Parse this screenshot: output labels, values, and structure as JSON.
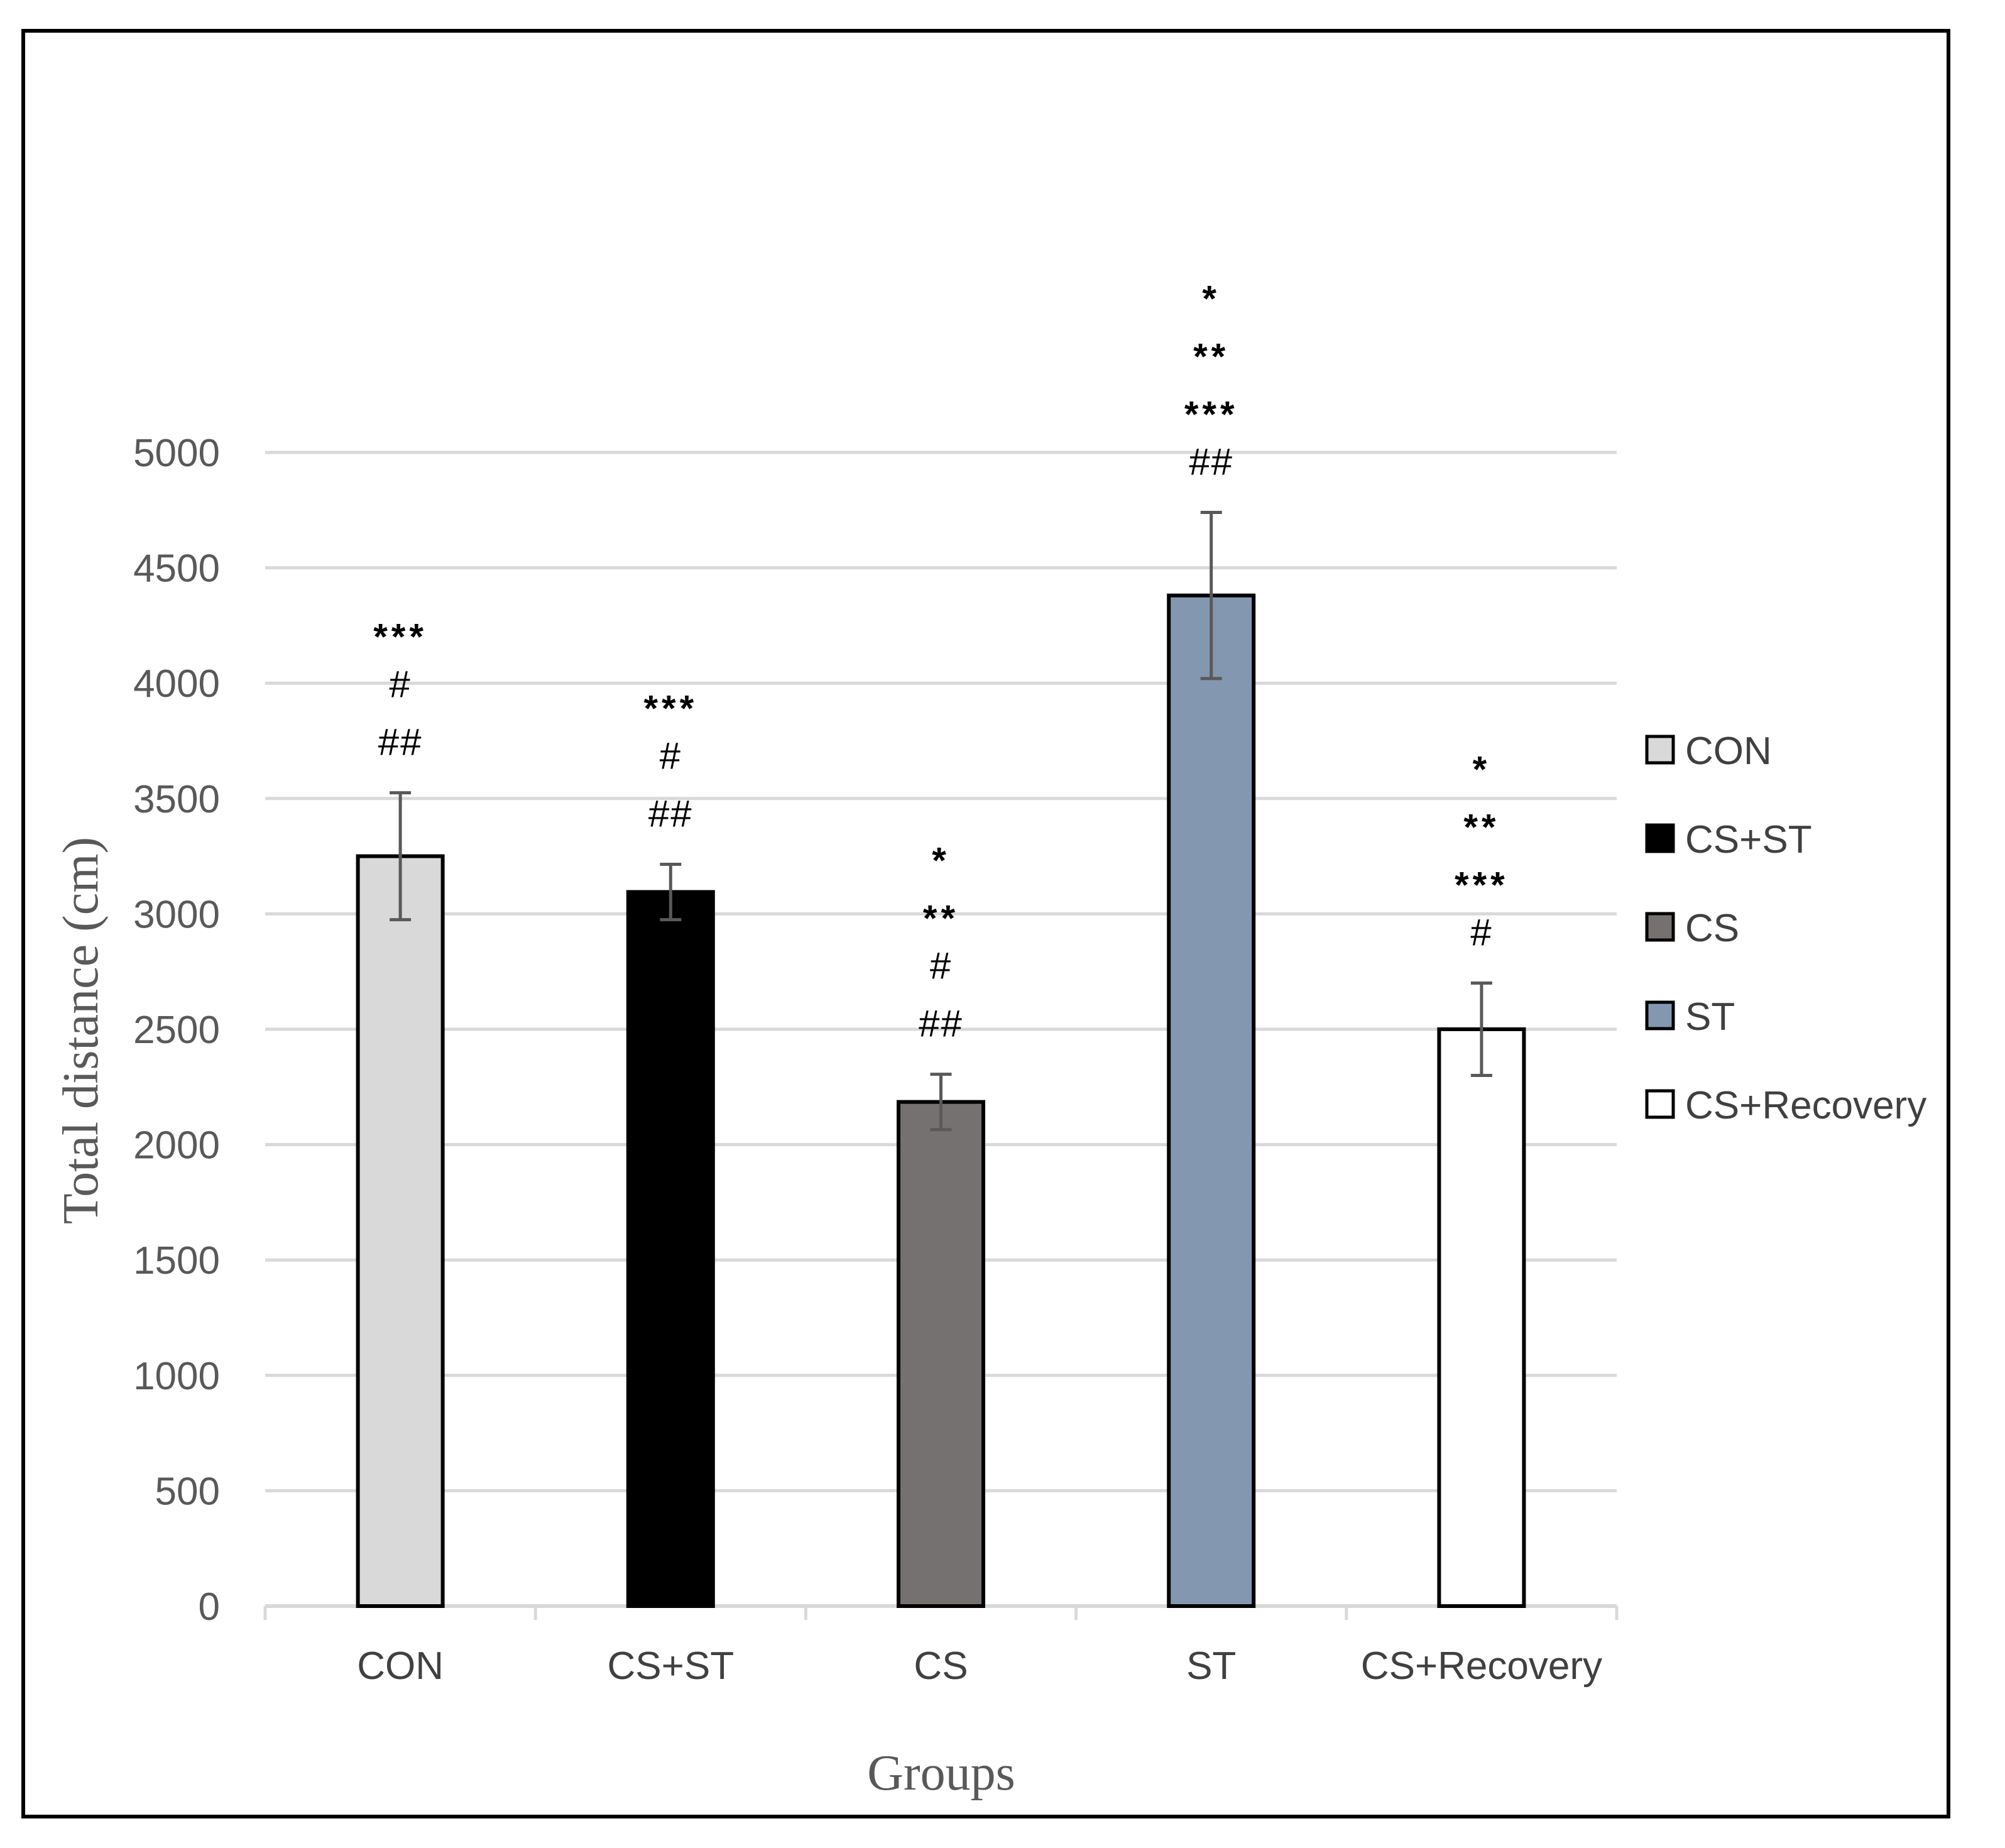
{
  "chart_data": {
    "type": "bar",
    "categories": [
      "CON",
      "CS+ST",
      "CS",
      "ST",
      "CS+Recovery"
    ],
    "values": [
      3250,
      3095,
      2185,
      4380,
      2500
    ],
    "errors": [
      275,
      120,
      120,
      360,
      200
    ],
    "colors": [
      "#d9d9d9",
      "#000000",
      "#767171",
      "#8497b0",
      "#ffffff"
    ],
    "annotations": [
      [
        "***",
        "#",
        "##"
      ],
      [
        "***",
        "#",
        "##"
      ],
      [
        "*",
        "**",
        "#",
        "##"
      ],
      [
        "*",
        "**",
        "***",
        "##"
      ],
      [
        "*",
        "**",
        "***",
        "#"
      ]
    ],
    "xlabel": "Groups",
    "ylabel": "Total distance (cm)",
    "ylim": [
      0,
      5000
    ],
    "yticks": [
      "0",
      "500",
      "1000",
      "1500",
      "2000",
      "2500",
      "3000",
      "3500",
      "4000",
      "4500",
      "5000"
    ],
    "grid": true,
    "legend": {
      "position": "right",
      "entries": [
        "CON",
        "CS+ST",
        "CS",
        "ST",
        "CS+Recovery"
      ]
    }
  }
}
